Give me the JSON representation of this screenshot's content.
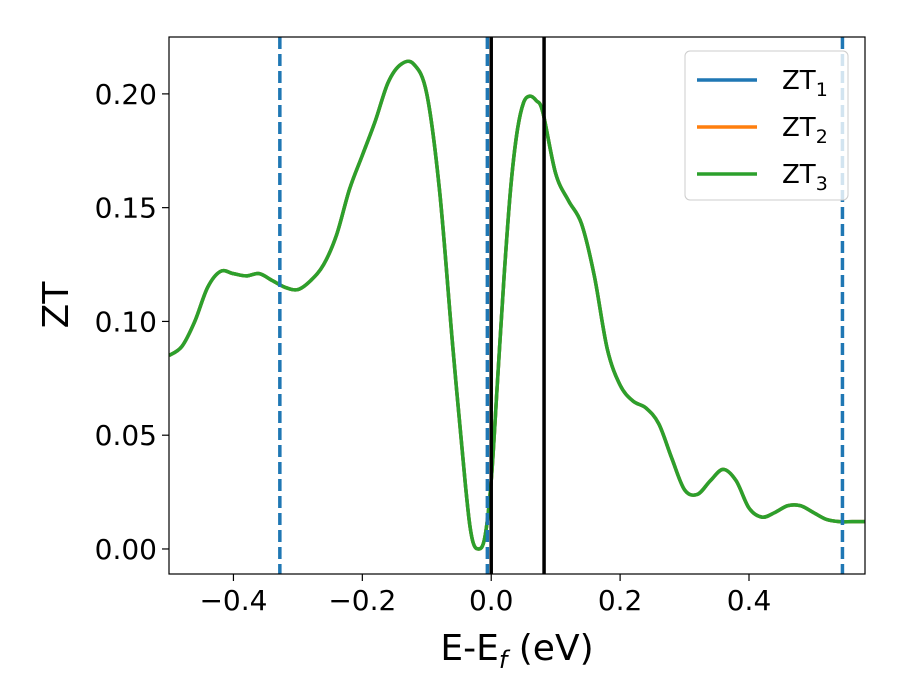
{
  "chart_data": {
    "type": "line",
    "xlabel_main": "E-E",
    "xlabel_sub": "f",
    "xlabel_unit": " (eV)",
    "ylabel": "ZT",
    "xlim": [
      -0.5,
      0.58
    ],
    "ylim": [
      -0.011,
      0.225
    ],
    "grid": false,
    "legend_placement": "top-right",
    "x_ticks": [
      {
        "value": -0.4,
        "label": "−0.4"
      },
      {
        "value": -0.2,
        "label": "−0.2"
      },
      {
        "value": 0.0,
        "label": "0.0"
      },
      {
        "value": 0.2,
        "label": "0.2"
      },
      {
        "value": 0.4,
        "label": "0.4"
      }
    ],
    "y_ticks": [
      {
        "value": 0.0,
        "label": "0.00"
      },
      {
        "value": 0.05,
        "label": "0.05"
      },
      {
        "value": 0.1,
        "label": "0.10"
      },
      {
        "value": 0.15,
        "label": "0.15"
      },
      {
        "value": 0.2,
        "label": "0.20"
      }
    ],
    "series": [
      {
        "name": "ZT",
        "sub": "1",
        "color": "#1f77b4"
      },
      {
        "name": "ZT",
        "sub": "2",
        "color": "#ff7f0e"
      },
      {
        "name": "ZT",
        "sub": "3",
        "color": "#2ca02c"
      }
    ],
    "x": [
      -0.5,
      -0.48,
      -0.46,
      -0.44,
      -0.42,
      -0.4,
      -0.38,
      -0.36,
      -0.34,
      -0.32,
      -0.3,
      -0.28,
      -0.26,
      -0.24,
      -0.22,
      -0.2,
      -0.18,
      -0.16,
      -0.14,
      -0.12,
      -0.1,
      -0.08,
      -0.06,
      -0.04,
      -0.03,
      -0.02,
      -0.01,
      0.0,
      0.01,
      0.02,
      0.03,
      0.04,
      0.05,
      0.06,
      0.07,
      0.08,
      0.1,
      0.12,
      0.14,
      0.16,
      0.18,
      0.2,
      0.22,
      0.24,
      0.26,
      0.28,
      0.3,
      0.32,
      0.34,
      0.36,
      0.38,
      0.4,
      0.42,
      0.44,
      0.46,
      0.48,
      0.5,
      0.52,
      0.54,
      0.56,
      0.58
    ],
    "y": [
      0.085,
      0.089,
      0.1,
      0.115,
      0.122,
      0.121,
      0.12,
      0.121,
      0.118,
      0.115,
      0.114,
      0.118,
      0.125,
      0.138,
      0.158,
      0.173,
      0.188,
      0.205,
      0.213,
      0.213,
      0.2,
      0.157,
      0.09,
      0.028,
      0.005,
      0.0,
      0.005,
      0.03,
      0.075,
      0.12,
      0.158,
      0.183,
      0.196,
      0.199,
      0.197,
      0.192,
      0.165,
      0.153,
      0.143,
      0.12,
      0.088,
      0.072,
      0.065,
      0.062,
      0.055,
      0.04,
      0.026,
      0.024,
      0.03,
      0.035,
      0.03,
      0.018,
      0.014,
      0.016,
      0.019,
      0.019,
      0.016,
      0.013,
      0.012,
      0.012,
      0.012
    ],
    "dashed_vlines": {
      "color": "#1f77b4",
      "x": [
        -0.328,
        -0.006,
        0.545
      ]
    },
    "solid_vlines": {
      "color": "#000000",
      "x": [
        0.0,
        0.082
      ]
    }
  }
}
